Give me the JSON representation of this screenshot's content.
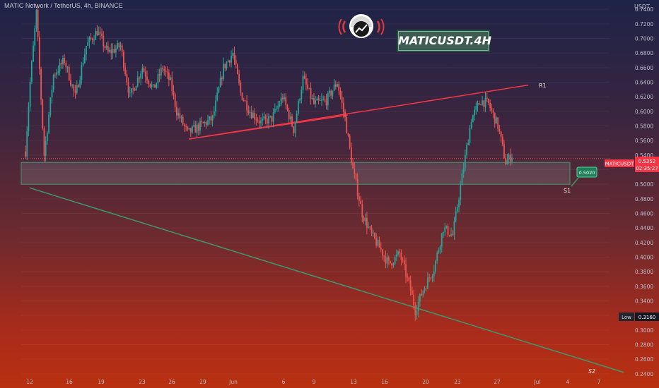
{
  "header": {
    "symbol_title": "MATIC Network / TetherUS, 4h, BINANCE"
  },
  "overlay": {
    "chart_title": "MATICUSDT.4H"
  },
  "price_axis": {
    "currency": "USDT"
  },
  "badges": {
    "symbol": "MATICUSDT",
    "price": "0.5352",
    "timer": "02:35:27",
    "level_price": "0.5020",
    "low_label": "Low",
    "low_value": "0.3160"
  },
  "annotations": {
    "r1": "R1",
    "s1": "S1",
    "s2": "S2"
  },
  "colors": {
    "bull": "#26a69a",
    "bear": "#ef5350",
    "resistance": "#f23645",
    "support": "#3d9970",
    "zone_fill": "#9aa0a6",
    "badge_red": "#f23645",
    "badge_green": "#1e7f5a"
  },
  "chart_data": {
    "type": "candlestick",
    "title": "MATICUSDT.4H",
    "symbol": "MATIC Network / TetherUS",
    "interval": "4h",
    "exchange": "BINANCE",
    "x_ticks": [
      "12",
      "16",
      "19",
      "23",
      "26",
      "29",
      "Jun",
      "6",
      "9",
      "13",
      "16",
      "20",
      "23",
      "27",
      "Jul",
      "4",
      "7"
    ],
    "y_ticks": [
      "0.7400",
      "0.7200",
      "0.7000",
      "0.6800",
      "0.6600",
      "0.6400",
      "0.6200",
      "0.6000",
      "0.5800",
      "0.5600",
      "0.5400",
      "0.5200",
      "0.5000",
      "0.4800",
      "0.4600",
      "0.4400",
      "0.4200",
      "0.4000",
      "0.3800",
      "0.3600",
      "0.3400",
      "0.3200",
      "0.3000",
      "0.2800",
      "0.2600",
      "0.2400"
    ],
    "y_range": [
      0.235,
      0.745
    ],
    "last_price": 0.5352,
    "period_low": 0.316,
    "anchors": [
      [
        0,
        0.545
      ],
      [
        3,
        0.64
      ],
      [
        7,
        0.735
      ],
      [
        12,
        0.54
      ],
      [
        18,
        0.65
      ],
      [
        25,
        0.67
      ],
      [
        32,
        0.62
      ],
      [
        39,
        0.69
      ],
      [
        46,
        0.71
      ],
      [
        53,
        0.68
      ],
      [
        61,
        0.69
      ],
      [
        67,
        0.62
      ],
      [
        75,
        0.66
      ],
      [
        82,
        0.63
      ],
      [
        88,
        0.66
      ],
      [
        93,
        0.64
      ],
      [
        97,
        0.6
      ],
      [
        104,
        0.57
      ],
      [
        112,
        0.58
      ],
      [
        120,
        0.59
      ],
      [
        127,
        0.66
      ],
      [
        133,
        0.68
      ],
      [
        138,
        0.625
      ],
      [
        144,
        0.6
      ],
      [
        151,
        0.585
      ],
      [
        158,
        0.59
      ],
      [
        165,
        0.62
      ],
      [
        172,
        0.575
      ],
      [
        178,
        0.645
      ],
      [
        185,
        0.61
      ],
      [
        193,
        0.615
      ],
      [
        200,
        0.64
      ],
      [
        205,
        0.59
      ],
      [
        210,
        0.52
      ],
      [
        216,
        0.46
      ],
      [
        222,
        0.43
      ],
      [
        228,
        0.41
      ],
      [
        233,
        0.39
      ],
      [
        240,
        0.405
      ],
      [
        247,
        0.355
      ],
      [
        250,
        0.327
      ],
      [
        255,
        0.355
      ],
      [
        262,
        0.385
      ],
      [
        268,
        0.44
      ],
      [
        274,
        0.43
      ],
      [
        280,
        0.51
      ],
      [
        286,
        0.59
      ],
      [
        292,
        0.615
      ],
      [
        297,
        0.61
      ],
      [
        303,
        0.58
      ],
      [
        308,
        0.53
      ],
      [
        312,
        0.54
      ]
    ],
    "resistance_line": {
      "label": "R1",
      "points": [
        [
          "May 27",
          0.562
        ],
        [
          "Jun 28",
          0.636
        ]
      ]
    },
    "rising_support": {
      "points": [
        [
          "May 27",
          0.562
        ],
        [
          "Jun 11",
          0.595
        ]
      ]
    },
    "support_zone": {
      "label": "S1",
      "low": 0.5,
      "high": 0.53
    },
    "support_line": {
      "label": "S2",
      "points": [
        [
          "May 12",
          0.495
        ],
        [
          "Jul 7",
          0.242
        ]
      ]
    }
  }
}
